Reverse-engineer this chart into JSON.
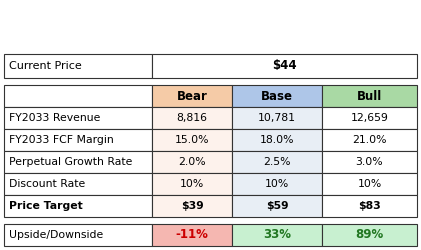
{
  "current_price_label": "Current Price",
  "current_price_value": "$44",
  "header_labels": [
    "",
    "Bear",
    "Base",
    "Bull"
  ],
  "header_bg_colors": [
    "#ffffff",
    "#f5cba7",
    "#aec6e8",
    "#a9d9a4"
  ],
  "rows": [
    [
      "FY2033 Revenue",
      "8,816",
      "10,781",
      "12,659"
    ],
    [
      "FY2033 FCF Margin",
      "15.0%",
      "18.0%",
      "21.0%"
    ],
    [
      "Perpetual Growth Rate",
      "2.0%",
      "2.5%",
      "3.0%"
    ],
    [
      "Discount Rate",
      "10%",
      "10%",
      "10%"
    ],
    [
      "Price Target",
      "$39",
      "$59",
      "$83"
    ]
  ],
  "upside_label": "Upside/Downside",
  "upside_values": [
    "-11%",
    "33%",
    "89%"
  ],
  "upside_bg_colors": [
    "#f5b7b1",
    "#c8f0d0",
    "#c8f0d0"
  ],
  "upside_text_colors": [
    "#cc0000",
    "#227722",
    "#227722"
  ],
  "col_bg_bear": "#fdf2ec",
  "col_bg_base": "#e8eef5",
  "col_bg_bull": "#ffffff",
  "border_color": "#333333",
  "text_color": "#000000"
}
